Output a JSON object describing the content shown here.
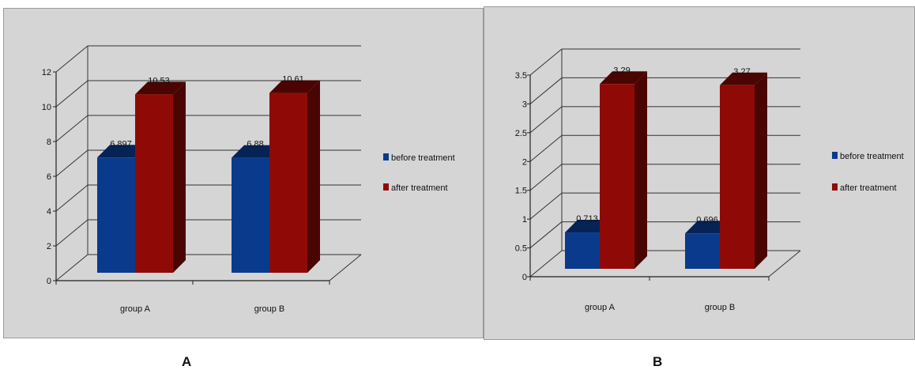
{
  "chart_data": [
    {
      "type": "bar",
      "panel_label": "A",
      "categories": [
        "group A",
        "group B"
      ],
      "series": [
        {
          "name": "before treatment",
          "values": [
            6.897,
            6.88
          ],
          "labels": [
            "6.897",
            "6.88"
          ]
        },
        {
          "name": "after treatment",
          "values": [
            10.53,
            10.61
          ],
          "labels": [
            "10.53",
            "10.61"
          ]
        }
      ],
      "ylim": [
        0,
        12
      ],
      "yticks": [
        "0",
        "2",
        "4",
        "6",
        "8",
        "10",
        "12"
      ],
      "grid": true,
      "legend": "right",
      "colors": {
        "before": "#0a3a8c",
        "after": "#8f0a06",
        "before_dark": "#062357",
        "after_dark": "#4a0503"
      }
    },
    {
      "type": "bar",
      "panel_label": "B",
      "categories": [
        "group A",
        "group B"
      ],
      "series": [
        {
          "name": "before treatment",
          "values": [
            0.713,
            0.696
          ],
          "labels": [
            "0.713",
            "0.696"
          ]
        },
        {
          "name": "after treatment",
          "values": [
            3.29,
            3.27
          ],
          "labels": [
            "3.29",
            "3.27"
          ]
        }
      ],
      "ylim": [
        0,
        3.5
      ],
      "yticks": [
        "0",
        "0.5",
        "1",
        "1.5",
        "2",
        "2.5",
        "3",
        "3.5"
      ],
      "grid": true,
      "legend": "right",
      "colors": {
        "before": "#0a3a8c",
        "after": "#8f0a06",
        "before_dark": "#062357",
        "after_dark": "#4a0503"
      }
    }
  ]
}
